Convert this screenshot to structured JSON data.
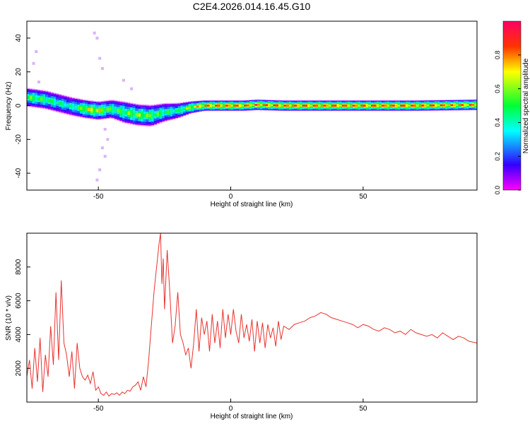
{
  "figure_title": "C2E4.2026.014.16.45.G10",
  "colors": {
    "snr_line": "#e8332f",
    "frame": "#000000",
    "colormap": [
      "#ff00ff",
      "#3300ff",
      "#00ffff",
      "#00ff33",
      "#ffff00",
      "#ff3300",
      "#ff0066"
    ]
  },
  "chart_data": [
    {
      "id": "spectrogram",
      "type": "heatmap",
      "title": "",
      "xlabel": "Height of straight line (km)",
      "ylabel": "Frequency (Hz)",
      "xlim": [
        -77,
        93
      ],
      "ylim": [
        -50,
        50
      ],
      "xticks": [
        -50,
        0,
        50
      ],
      "yticks": [
        -40,
        -20,
        0,
        20,
        40
      ],
      "grid": false,
      "colorbar": {
        "label": "Normalized spectral amplitude",
        "range": [
          0,
          1
        ],
        "ticks": [
          "0.0",
          "0.2",
          "0.4",
          "0.6",
          "0.8"
        ],
        "tick_values": [
          0.0,
          0.2,
          0.4,
          0.6,
          0.8
        ]
      },
      "ridge": {
        "x": [
          -77,
          -70,
          -65,
          -60,
          -55,
          -50,
          -45,
          -40,
          -35,
          -30,
          -25,
          -20,
          -15,
          -10,
          -5,
          0,
          5,
          10,
          20,
          30,
          50,
          70,
          93
        ],
        "freq": [
          5,
          3.5,
          1.5,
          -0.5,
          -2,
          -3,
          -2,
          -4,
          -5.5,
          -6,
          -4,
          -3,
          -1,
          0,
          0,
          0,
          0,
          0.5,
          0,
          0,
          0,
          0,
          0.5
        ],
        "amplitude": [
          0.6,
          0.55,
          0.5,
          0.45,
          0.7,
          0.75,
          0.55,
          0.6,
          0.65,
          0.6,
          0.55,
          0.5,
          0.7,
          0.85,
          0.9,
          0.9,
          0.85,
          0.9,
          0.9,
          0.9,
          0.9,
          0.9,
          0.85
        ],
        "spread_hz": [
          6,
          6,
          6,
          6,
          6,
          6,
          6,
          7,
          7,
          7,
          6,
          5,
          4,
          3.5,
          3.5,
          3.5,
          3.5,
          3.5,
          3.5,
          3.5,
          3.5,
          3.5,
          3.5
        ]
      },
      "scattered_noise": {
        "x": [
          -75,
          -74,
          -73,
          -52,
          -51,
          -50,
          -49,
          -48,
          -47,
          -41,
          -38,
          -48,
          -50,
          -51,
          -49
        ],
        "freq": [
          25,
          32,
          14,
          43,
          40,
          28,
          22,
          -14,
          -20,
          15,
          10,
          -30,
          -38,
          -44,
          -25
        ]
      }
    },
    {
      "id": "snr",
      "type": "line",
      "title": "",
      "xlabel": "Height of straight line (km)",
      "ylabel": "SNR (10 * v/v)",
      "xlim": [
        -77,
        93
      ],
      "ylim": [
        0,
        10000
      ],
      "xticks": [
        -50,
        0,
        50
      ],
      "yticks": [
        2000,
        4000,
        6000,
        8000
      ],
      "grid": false,
      "series": [
        {
          "x": [
            -77,
            -76,
            -75,
            -74,
            -73,
            -72,
            -71,
            -70,
            -69,
            -68,
            -67,
            -66,
            -65,
            -64,
            -63,
            -62,
            -61,
            -60,
            -59,
            -58,
            -57,
            -56,
            -55,
            -54,
            -53,
            -52,
            -51,
            -50,
            -49,
            -48,
            -47,
            -46,
            -45,
            -44,
            -43,
            -42,
            -41,
            -40,
            -39,
            -38,
            -37,
            -36,
            -35,
            -34,
            -33,
            -32,
            -31,
            -30,
            -29,
            -28,
            -27,
            -26.5,
            -26,
            -25.5,
            -25,
            -24,
            -23,
            -22,
            -21,
            -20,
            -19,
            -18,
            -17,
            -16,
            -15,
            -14,
            -13,
            -12,
            -11,
            -10,
            -9,
            -8,
            -7,
            -6,
            -5,
            -4,
            -3,
            -2,
            -1,
            0,
            1,
            2,
            3,
            4,
            5,
            6,
            7,
            8,
            9,
            10,
            11,
            12,
            13,
            14,
            15,
            16,
            17,
            18,
            19,
            20,
            22,
            24,
            26,
            28,
            30,
            32,
            34,
            36,
            38,
            40,
            42,
            44,
            46,
            48,
            50,
            52,
            54,
            56,
            58,
            60,
            62,
            64,
            66,
            68,
            70,
            72,
            74,
            76,
            78,
            80,
            82,
            84,
            86,
            88,
            90,
            93
          ],
          "y": [
            1500,
            2500,
            800,
            3200,
            1200,
            3800,
            600,
            2800,
            1500,
            4500,
            2200,
            6500,
            2500,
            7200,
            3500,
            2800,
            1500,
            3000,
            800,
            3500,
            2000,
            1500,
            1300,
            1600,
            1100,
            1800,
            700,
            900,
            500,
            400,
            600,
            350,
            500,
            450,
            550,
            400,
            600,
            500,
            700,
            650,
            900,
            1000,
            1200,
            700,
            1500,
            900,
            2500,
            4500,
            6500,
            8000,
            9500,
            10000,
            7000,
            8500,
            5500,
            9000,
            6500,
            3500,
            4500,
            6500,
            4000,
            3500,
            2800,
            3200,
            2000,
            3500,
            5500,
            3000,
            5000,
            4000,
            4800,
            3000,
            5200,
            3500,
            4800,
            3200,
            5500,
            3800,
            5200,
            4000,
            5500,
            4200,
            3500,
            5200,
            3800,
            4600,
            3600,
            4900,
            3000,
            4800,
            3500,
            4700,
            3200,
            4600,
            3800,
            4400,
            3300,
            4800,
            3700,
            4500,
            4300,
            4600,
            4700,
            4800,
            5000,
            5100,
            5300,
            5200,
            5000,
            4900,
            4800,
            4700,
            4600,
            4400,
            4600,
            4500,
            4300,
            4200,
            4400,
            4300,
            4100,
            4200,
            4000,
            4300,
            4100,
            4000,
            3900,
            4000,
            3800,
            4100,
            3900,
            3700,
            3900,
            3800,
            3600,
            3500
          ]
        }
      ]
    }
  ]
}
